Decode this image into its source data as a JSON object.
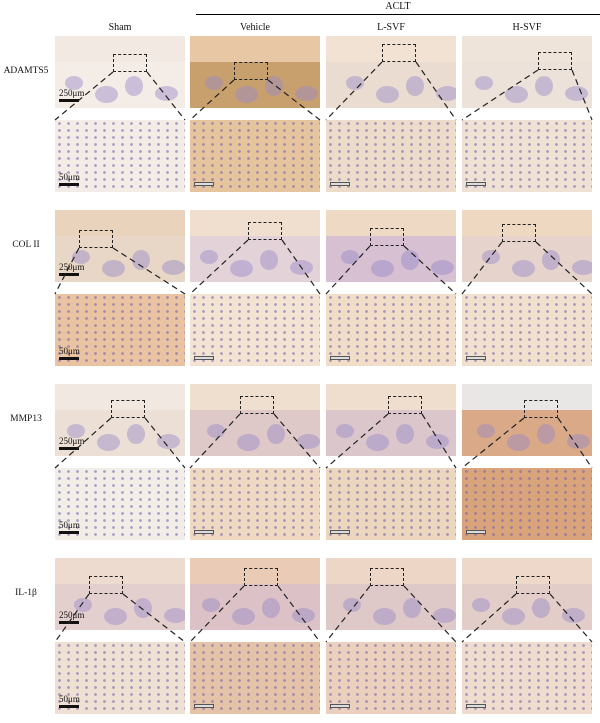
{
  "header": {
    "group_label": "ACLT",
    "columns": [
      "Sham",
      "Vehicle",
      "L-SVF",
      "H-SVF"
    ]
  },
  "rows": [
    {
      "marker": "ADAMTS5",
      "overview_scale": "250μm",
      "zoom_scale": "50μm",
      "tones": {
        "cart": [
          "#f1e9e2",
          "#e8c8a4",
          "#f1e2d3",
          "#efe4da"
        ],
        "bone": [
          "#f4ece6",
          "#c8a06e",
          "#eadcd0",
          "#ece2d9"
        ],
        "zoom": [
          "#f3ece6",
          "#e6c49e",
          "#eddcca",
          "#efe2d5"
        ]
      }
    },
    {
      "marker": "COL II",
      "overview_scale": "250μm",
      "zoom_scale": "50μm",
      "tones": {
        "cart": [
          "#ead3bd",
          "#f0dfcf",
          "#eed9c4",
          "#efd8c2"
        ],
        "bone": [
          "#e8d7c6",
          "#e3d2d8",
          "#d6c0d1",
          "#e5d3cc"
        ],
        "zoom": [
          "#eac4a2",
          "#f3e3d3",
          "#f1ddc8",
          "#f2e0cf"
        ]
      }
    },
    {
      "marker": "MMP13",
      "overview_scale": "250μm",
      "zoom_scale": "50μm",
      "tones": {
        "cart": [
          "#f1e8e1",
          "#efdfcf",
          "#efdecd",
          "#e9e6e6"
        ],
        "bone": [
          "#ece0d6",
          "#dec9c8",
          "#dbc6cc",
          "#d9a988"
        ],
        "zoom": [
          "#f3ede8",
          "#efd9c2",
          "#ecd6bd",
          "#d9a47c"
        ]
      }
    },
    {
      "marker": "IL-1β",
      "overview_scale": "250μm",
      "zoom_scale": "50μm",
      "tones": {
        "cart": [
          "#eedbd0",
          "#e9cbb6",
          "#edd6c6",
          "#eed8c9"
        ],
        "bone": [
          "#e4cfcf",
          "#dcc2c6",
          "#dfc8c8",
          "#e2cdc9"
        ],
        "zoom": [
          "#efe0d4",
          "#e5c3a8",
          "#ebd0bd",
          "#efdccf"
        ]
      }
    }
  ]
}
